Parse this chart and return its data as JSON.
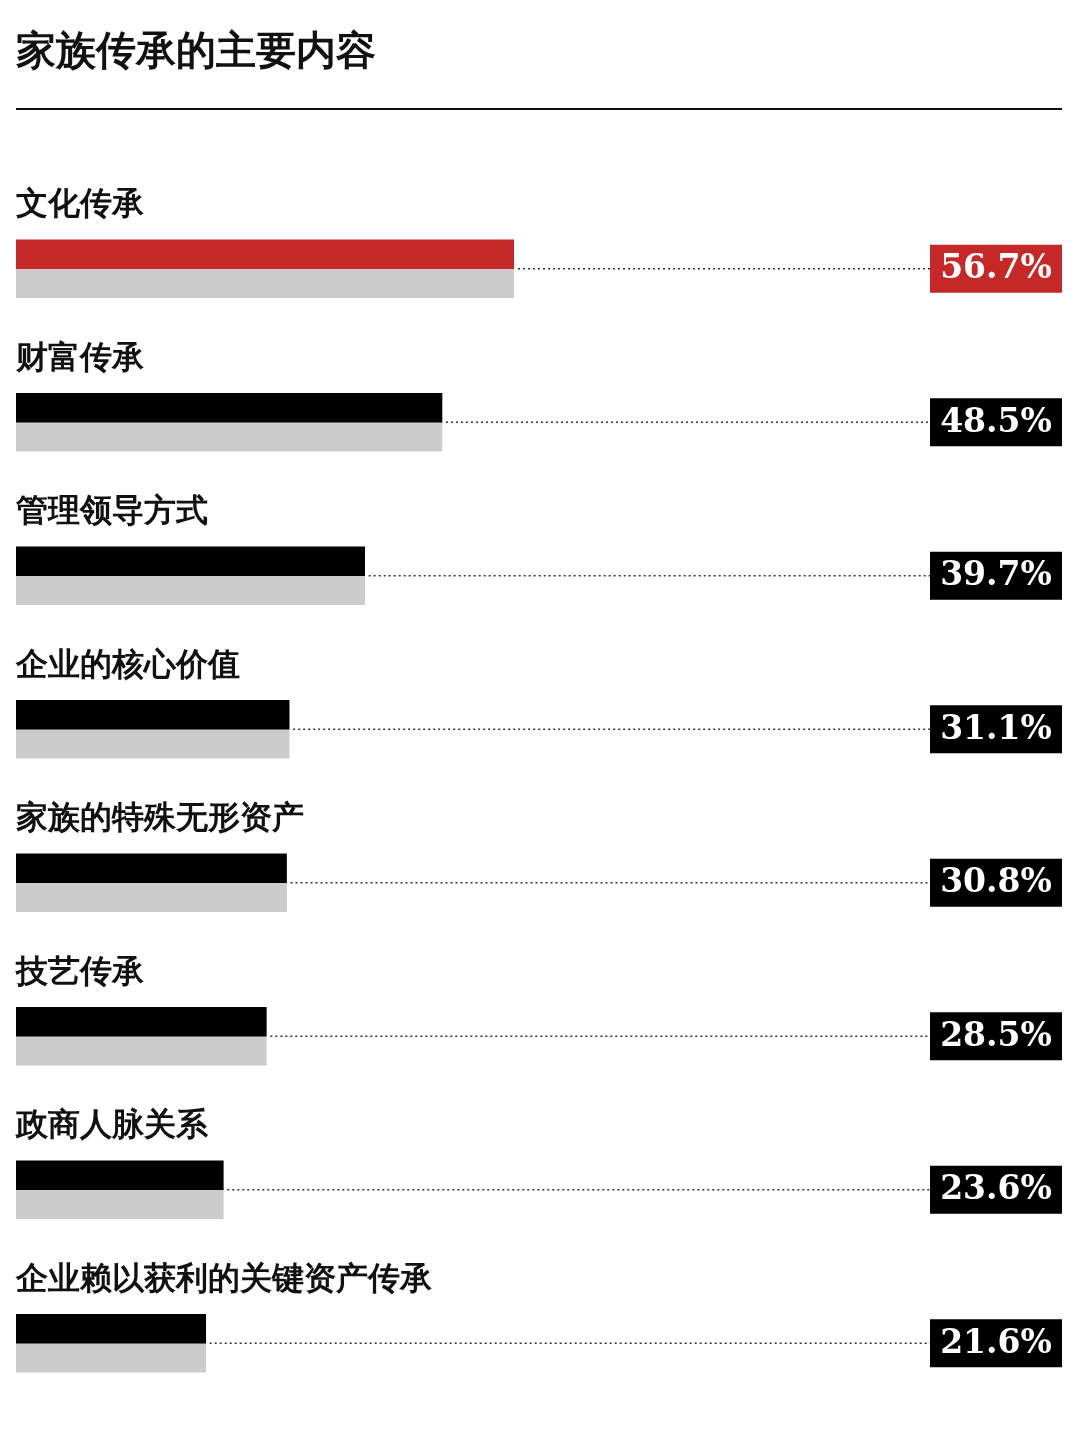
{
  "chart_data": {
    "type": "bar",
    "orientation": "horizontal",
    "grid": "y",
    "title": "家族传承的主要内容",
    "categories": [
      "文化传承",
      "财富传承",
      "管理领导方式",
      "企业的核心价值",
      "家族的特殊无形资产",
      "技艺传承",
      "政商人脉关系",
      "企业赖以获利的关键资产传承"
    ],
    "series": [
      {
        "colors": [
          "#c62828",
          "#000000",
          "#000000",
          "#000000",
          "#000000",
          "#000000",
          "#000000",
          "#000000"
        ],
        "values": [
          56.7,
          48.5,
          39.7,
          31.1,
          30.8,
          28.5,
          23.6,
          21.6
        ],
        "value_labels": [
          "56.7%",
          "48.5%",
          "39.7%",
          "31.1%",
          "30.8%",
          "28.5%",
          "23.6%",
          "21.6%"
        ]
      },
      {
        "color": "#cccccc",
        "values": [
          56.7,
          48.5,
          39.7,
          31.1,
          30.8,
          28.5,
          23.6,
          21.6
        ]
      }
    ]
  }
}
